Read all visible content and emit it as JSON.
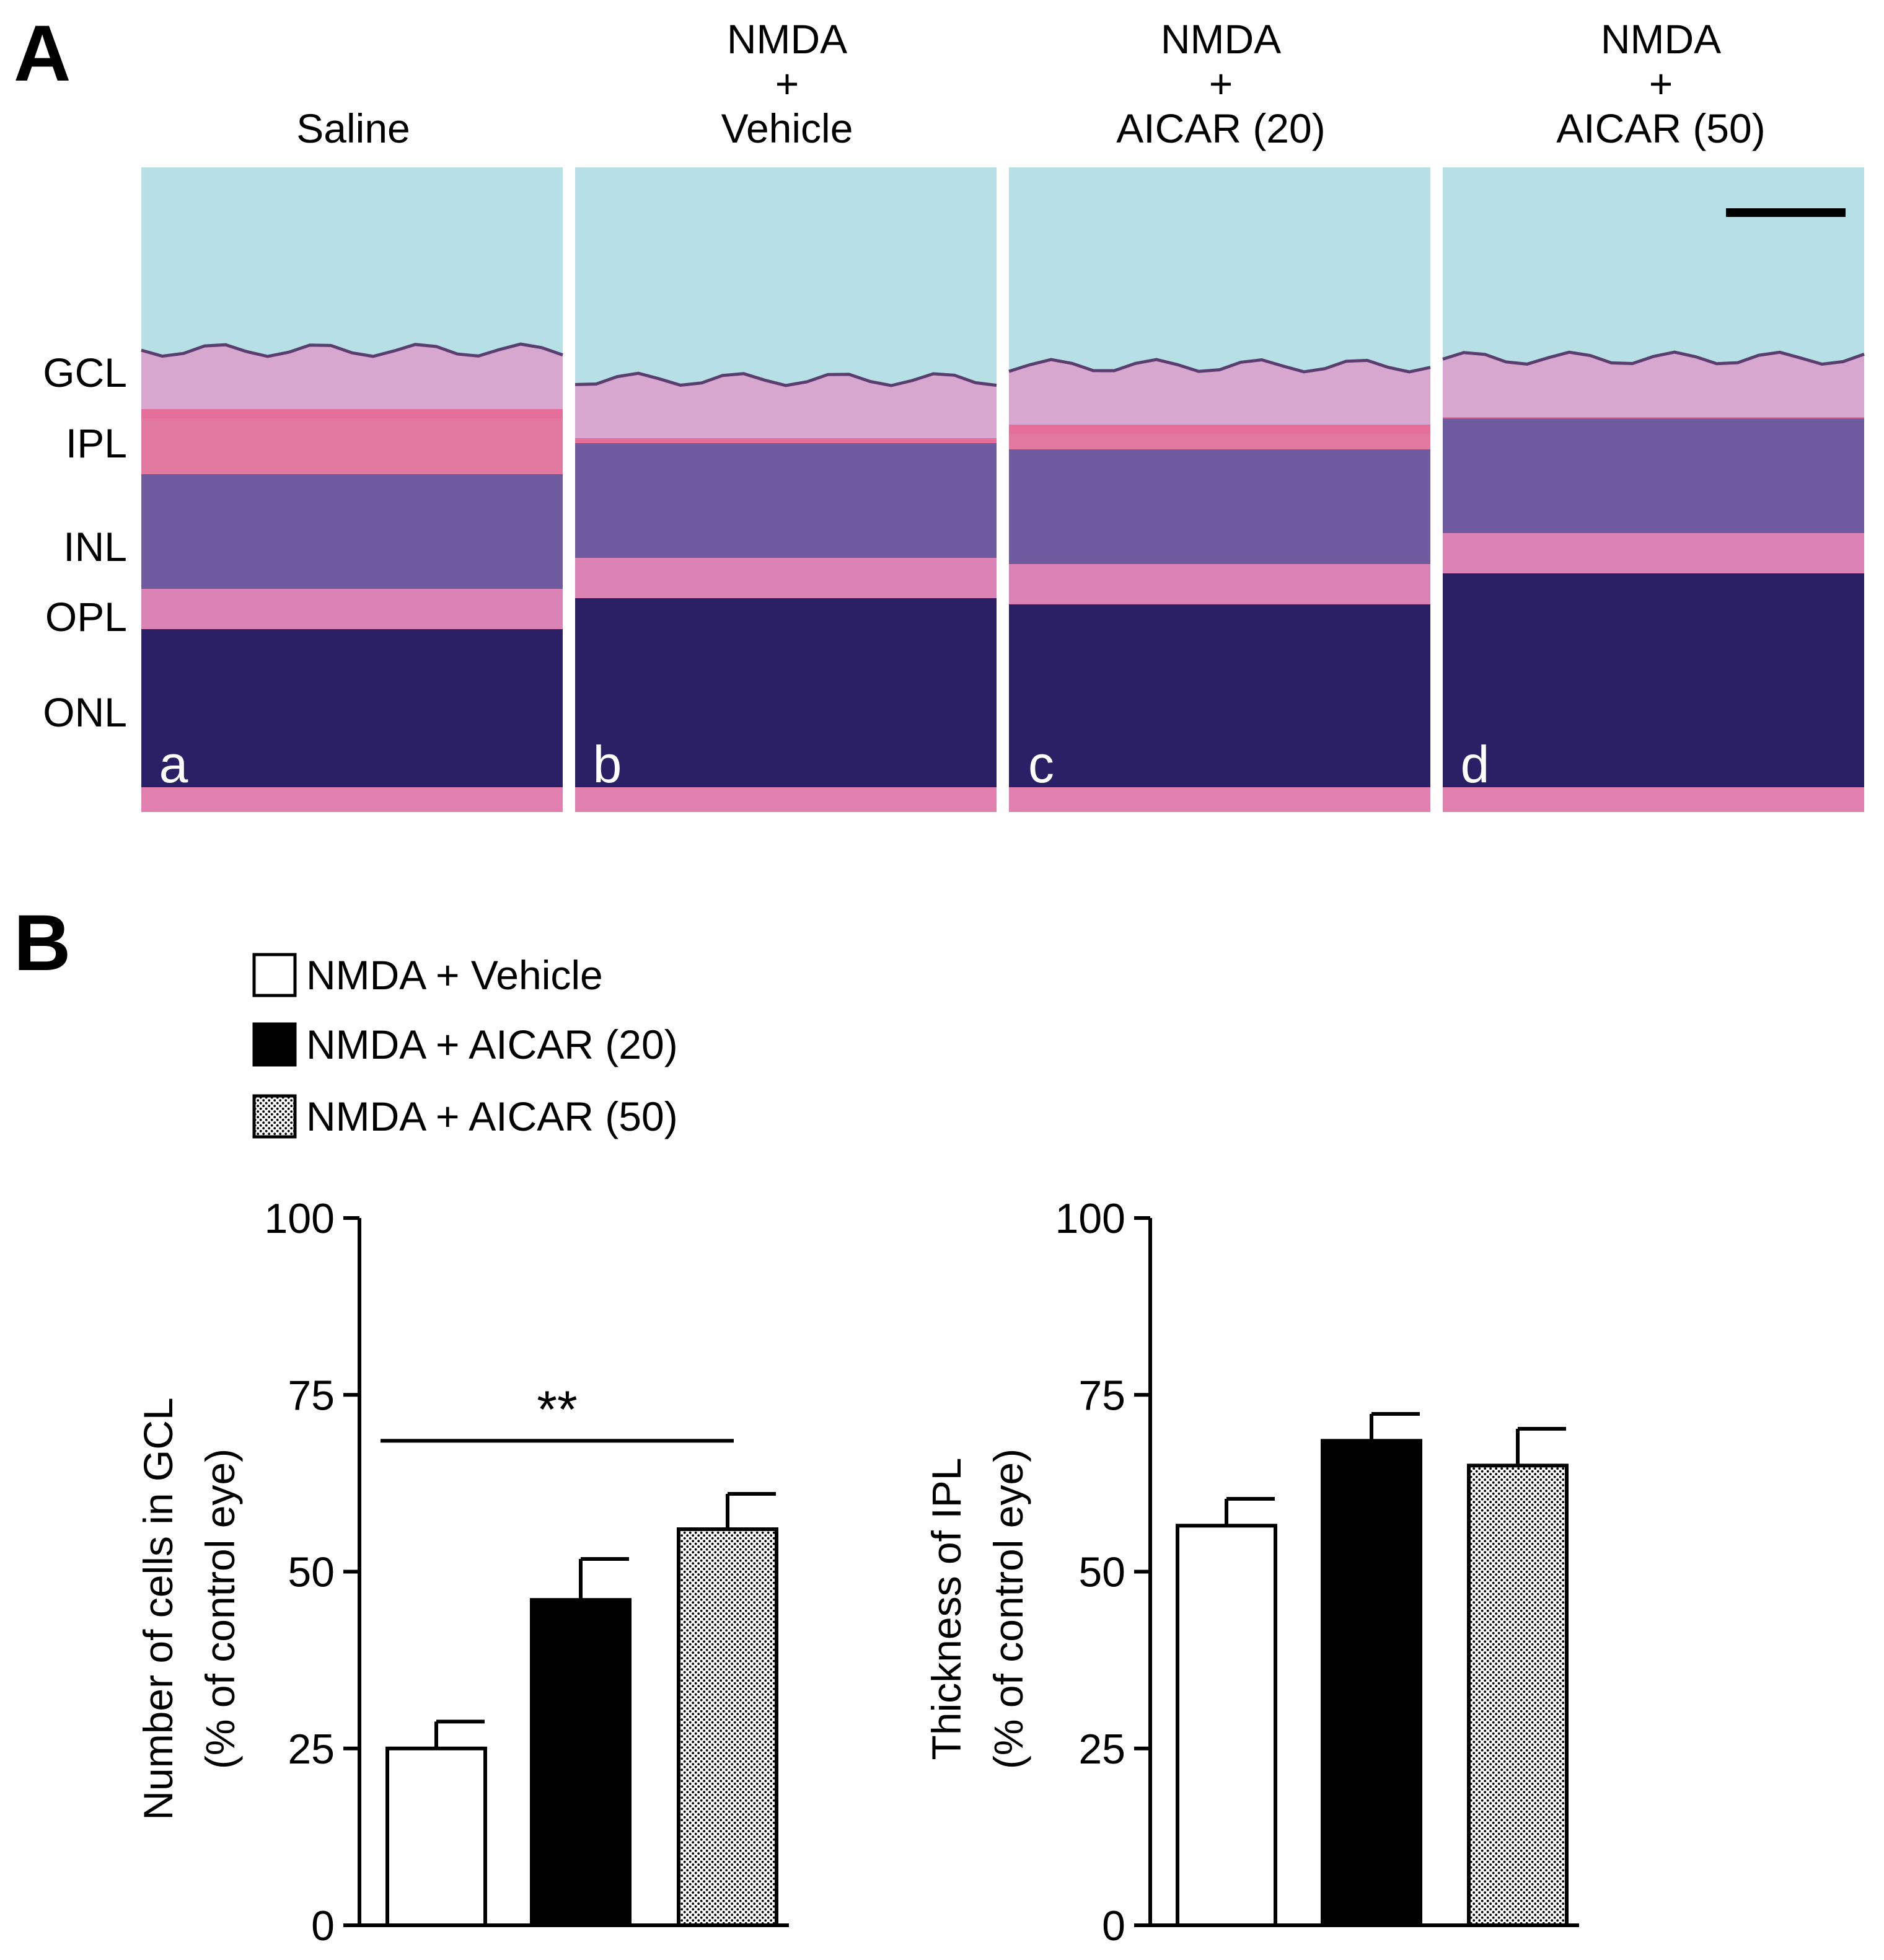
{
  "panel_a": {
    "letter": "A",
    "columns": [
      {
        "header_lines": [
          "Saline"
        ],
        "panel_label": "a"
      },
      {
        "header_lines": [
          "NMDA",
          "+",
          "Vehicle"
        ],
        "panel_label": "b"
      },
      {
        "header_lines": [
          "NMDA",
          "+",
          "AICAR (20)"
        ],
        "panel_label": "c"
      },
      {
        "header_lines": [
          "NMDA",
          "+",
          "AICAR (50)"
        ],
        "panel_label": "d"
      }
    ],
    "layer_labels": [
      "GCL",
      "IPL",
      "INL",
      "OPL",
      "ONL"
    ],
    "colors": {
      "background": "#b6e0e6",
      "gcl": "#d7a7cf",
      "ipl": "#e9658f",
      "inl": "#6e5a9e",
      "opl": "#db83b4",
      "onl": "#2b1f66",
      "bottom": "#e17fae"
    }
  },
  "panel_b": {
    "letter": "B",
    "legend": [
      {
        "label": "NMDA + Vehicle",
        "fill": "white"
      },
      {
        "label": "NMDA + AICAR (20)",
        "fill": "black"
      },
      {
        "label": "NMDA + AICAR (50)",
        "fill": "dotted"
      }
    ]
  },
  "chart_data": [
    {
      "type": "bar",
      "categories": [
        "NMDA + Vehicle",
        "NMDA + AICAR (20)",
        "NMDA + AICAR (50)"
      ],
      "values": [
        25,
        46,
        56
      ],
      "errors": [
        3.8,
        5.8,
        5.0
      ],
      "fills": [
        "white",
        "black",
        "dotted"
      ],
      "ylabel_lines": [
        "Number of cells in GCL",
        "(% of control eye)"
      ],
      "ylim": [
        0,
        100
      ],
      "yticks": [
        0,
        25,
        50,
        75,
        100
      ],
      "annotations": [
        {
          "text": "**",
          "from": 0,
          "to": 2,
          "y": 68.5
        }
      ]
    },
    {
      "type": "bar",
      "categories": [
        "NMDA + Vehicle",
        "NMDA + AICAR (20)",
        "NMDA + AICAR (50)"
      ],
      "values": [
        56.5,
        68.5,
        65
      ],
      "errors": [
        3.8,
        3.8,
        5.2
      ],
      "fills": [
        "white",
        "black",
        "dotted"
      ],
      "ylabel_lines": [
        "Thickness of IPL",
        "(% of control eye)"
      ],
      "ylim": [
        0,
        100
      ],
      "yticks": [
        0,
        25,
        50,
        75,
        100
      ],
      "annotations": []
    }
  ]
}
